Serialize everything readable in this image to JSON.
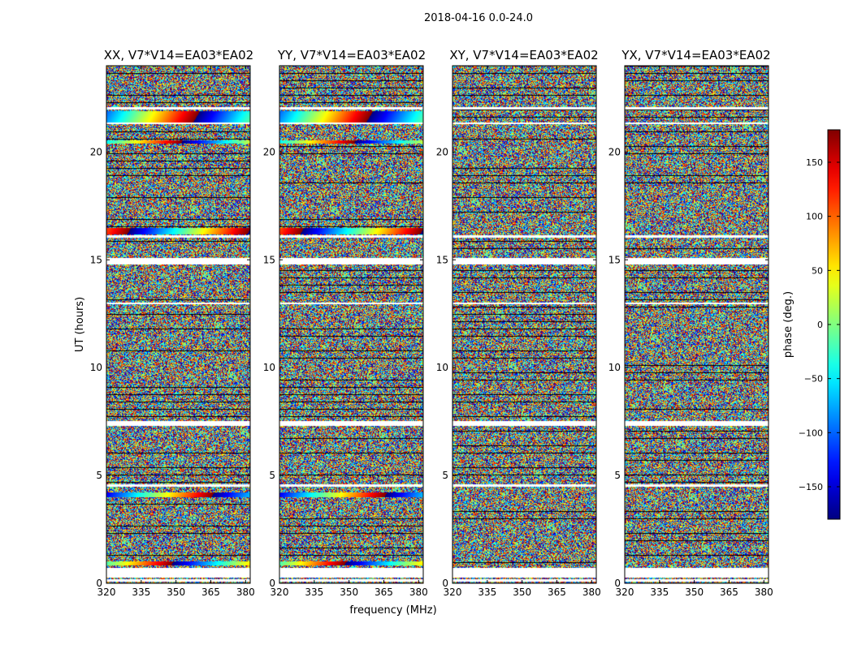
{
  "chart_data": {
    "type": "heatmap",
    "suptitle": "2018-04-16 0.0-24.0",
    "xlabel": "frequency (MHz)",
    "ylabel": "UT (hours)",
    "xlim": [
      320,
      382
    ],
    "ylim": [
      0,
      24
    ],
    "xticks": [
      320,
      335,
      350,
      365,
      380
    ],
    "yticks": [
      0,
      5,
      10,
      15,
      20
    ],
    "panels": [
      {
        "title": "XX, V7*V14=EA03*EA02"
      },
      {
        "title": "YY, V7*V14=EA03*EA02"
      },
      {
        "title": "XY, V7*V14=EA03*EA02"
      },
      {
        "title": "YX, V7*V14=EA03*EA02"
      }
    ],
    "colorbar": {
      "label": "phase (deg.)",
      "range": [
        -180,
        180
      ],
      "ticks": [
        -150,
        -100,
        -50,
        0,
        50,
        100,
        150
      ],
      "tick_labels": [
        "−150",
        "−100",
        "−50",
        "0",
        "50",
        "100",
        "150"
      ],
      "colormap": "jet"
    },
    "flagged_gaps_hours": [
      [
        0.1,
        0.2
      ],
      [
        0.3,
        0.75
      ],
      [
        4.5,
        4.6
      ],
      [
        7.3,
        7.55
      ],
      [
        12.95,
        13.05
      ],
      [
        14.8,
        15.1
      ],
      [
        16.05,
        16.15
      ],
      [
        21.3,
        21.4
      ],
      [
        22.0,
        22.1
      ]
    ],
    "bands_hours": [
      [
        0.85,
        1.05
      ],
      [
        4.0,
        4.25
      ],
      [
        16.2,
        16.5
      ],
      [
        20.4,
        20.55
      ],
      [
        21.4,
        21.9
      ]
    ]
  }
}
